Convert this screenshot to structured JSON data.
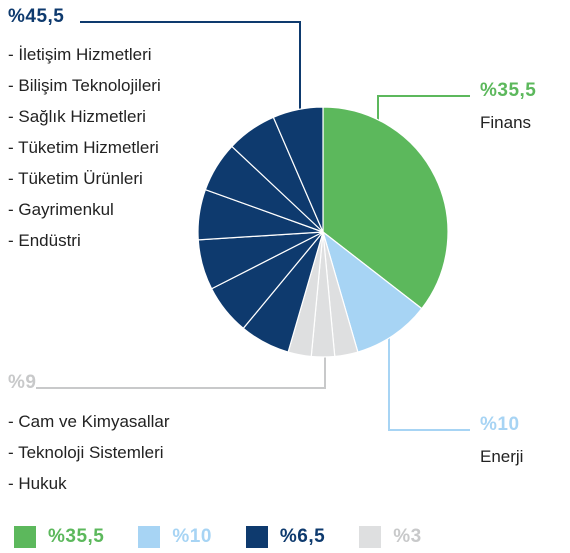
{
  "chart_data": {
    "type": "pie",
    "slices": [
      {
        "label": "Finans",
        "value": 35.5,
        "color": "#5cb85c"
      },
      {
        "label": "Enerji",
        "value": 10,
        "color": "#a7d4f4"
      },
      {
        "label": "Hukuk",
        "value": 3,
        "color": "#dedfe0"
      },
      {
        "label": "Teknoloji Sistemleri",
        "value": 3,
        "color": "#dedfe0"
      },
      {
        "label": "Cam ve Kimyasallar",
        "value": 3,
        "color": "#dedfe0"
      },
      {
        "label": "Endüstri",
        "value": 6.5,
        "color": "#0e3a6e"
      },
      {
        "label": "Gayrimenkul",
        "value": 6.5,
        "color": "#0e3a6e"
      },
      {
        "label": "Tüketim Ürünleri",
        "value": 6.5,
        "color": "#0e3a6e"
      },
      {
        "label": "Tüketim Hizmetleri",
        "value": 6.5,
        "color": "#0e3a6e"
      },
      {
        "label": "Sağlık Hizmetleri",
        "value": 6.5,
        "color": "#0e3a6e"
      },
      {
        "label": "Bilişim Teknolojileri",
        "value": 6.5,
        "color": "#0e3a6e"
      },
      {
        "label": "İletişim Hizmetleri",
        "value": 6.5,
        "color": "#0e3a6e"
      }
    ]
  },
  "groups": {
    "dark": {
      "total": "%45,5",
      "color": "#0e3a6e",
      "items": [
        "- İletişim Hizmetleri",
        "- Bilişim Teknolojileri",
        "- Sağlık Hizmetleri",
        "- Tüketim Hizmetleri",
        "- Tüketim Ürünleri",
        "- Gayrimenkul",
        "- Endüstri"
      ]
    },
    "green": {
      "total": "%35,5",
      "label": "Finans",
      "color": "#5cb85c"
    },
    "light_blue": {
      "total": "%10",
      "label": "Enerji",
      "color": "#a7d4f4"
    },
    "gray": {
      "total": "%9",
      "color": "#c8c9ca",
      "items": [
        "- Cam ve Kimyasallar",
        "- Teknoloji Sistemleri",
        "- Hukuk"
      ]
    }
  },
  "legend": [
    {
      "text": "%35,5",
      "color": "#5cb85c"
    },
    {
      "text": "%10",
      "color": "#a7d4f4"
    },
    {
      "text": "%6,5",
      "color": "#0e3a6e"
    },
    {
      "text": "%3",
      "color": "#dedfe0",
      "text_color": "#c8c9ca"
    }
  ]
}
